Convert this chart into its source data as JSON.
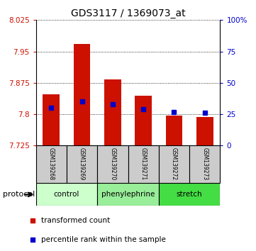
{
  "title": "GDS3117 / 1369073_at",
  "samples": [
    "GSM139268",
    "GSM139269",
    "GSM139270",
    "GSM139271",
    "GSM139272",
    "GSM139273"
  ],
  "bar_base": 7.725,
  "bar_tops": [
    7.847,
    7.968,
    7.883,
    7.845,
    7.797,
    7.793
  ],
  "percentile_values": [
    30,
    35,
    33,
    29,
    27,
    26
  ],
  "ylim_left": [
    7.725,
    8.025
  ],
  "ylim_right": [
    0,
    100
  ],
  "left_ticks": [
    7.725,
    7.8,
    7.875,
    7.95,
    8.025
  ],
  "right_ticks": [
    0,
    25,
    50,
    75,
    100
  ],
  "right_tick_labels": [
    "0",
    "25",
    "50",
    "75",
    "100%"
  ],
  "bar_color": "#cc1100",
  "blue_color": "#0000cc",
  "groups": [
    {
      "label": "control",
      "spans": [
        0,
        2
      ],
      "color": "#ccffcc"
    },
    {
      "label": "phenylephrine",
      "spans": [
        2,
        4
      ],
      "color": "#99ee99"
    },
    {
      "label": "stretch",
      "spans": [
        4,
        6
      ],
      "color": "#44dd44"
    }
  ],
  "legend_items": [
    {
      "color": "#cc1100",
      "label": "transformed count"
    },
    {
      "color": "#0000cc",
      "label": "percentile rank within the sample"
    }
  ],
  "protocol_label": "protocol",
  "bar_width": 0.55,
  "figsize": [
    3.61,
    3.54
  ],
  "dpi": 100
}
